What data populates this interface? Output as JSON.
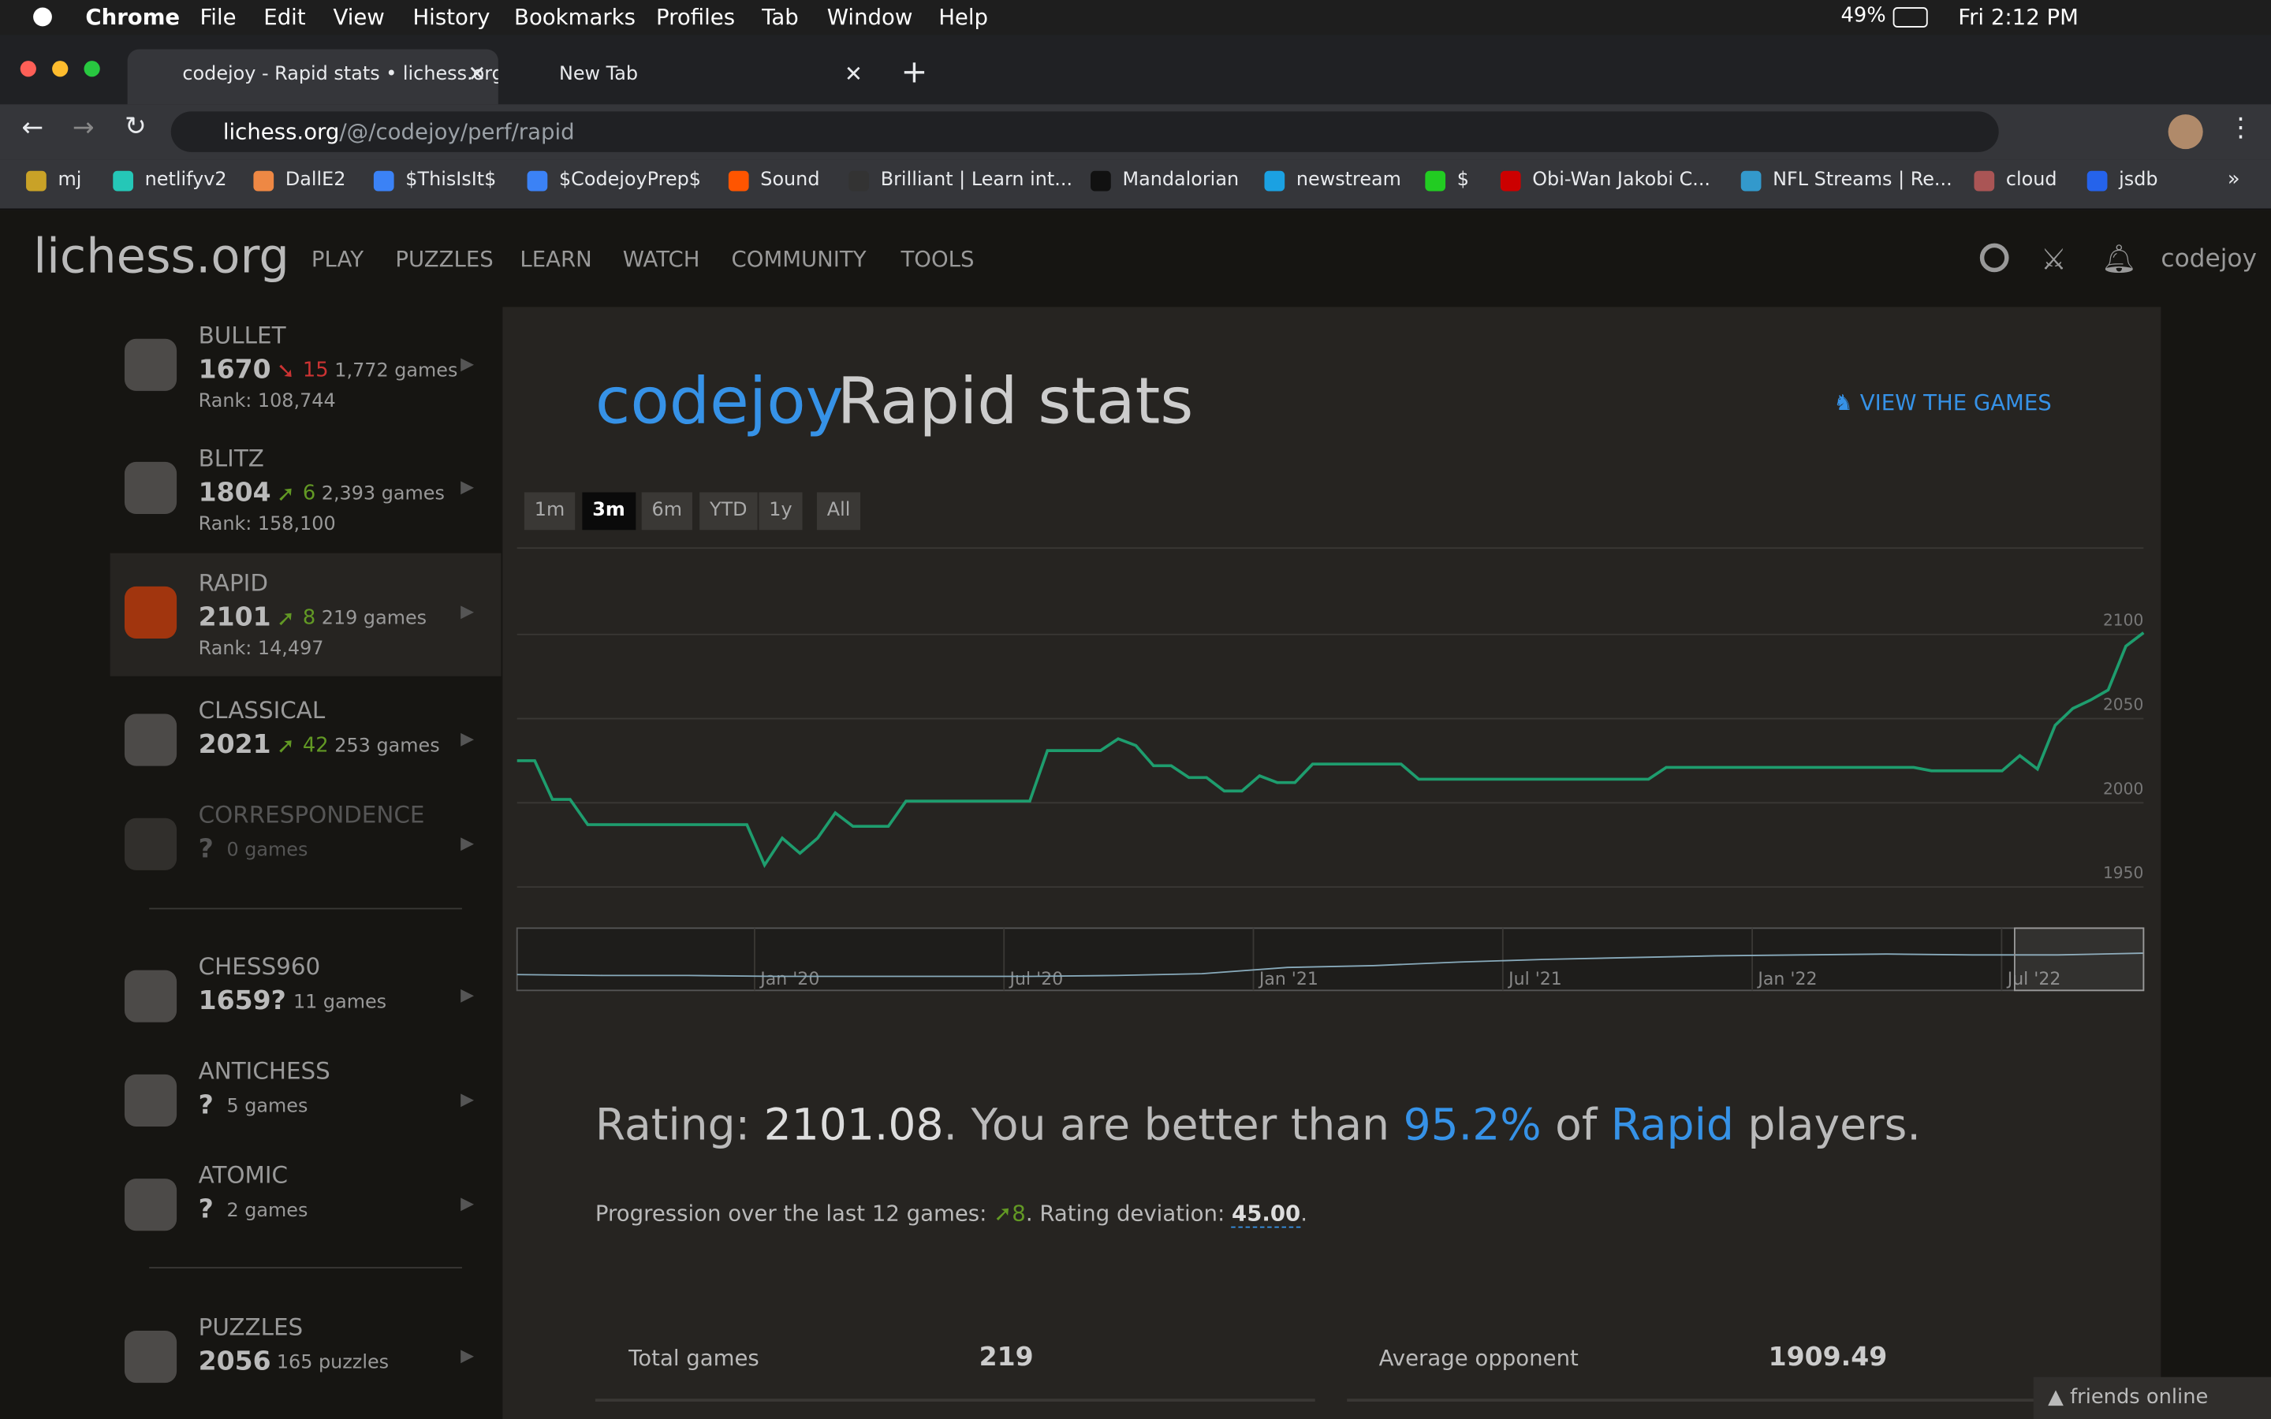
{
  "menubar": {
    "app": "Chrome",
    "menus": [
      "File",
      "Edit",
      "View",
      "History",
      "Bookmarks",
      "Profiles",
      "Tab",
      "Window",
      "Help"
    ],
    "battery": "49%",
    "clock": "Fri 2:12 PM"
  },
  "tabs": [
    "codejoy - Rapid stats • lichess.org",
    "New Tab"
  ],
  "url": {
    "host": "lichess.org",
    "path": "/@/codejoy/perf/rapid"
  },
  "bookmarks": [
    "mj",
    "netlifyv2",
    "DallE2",
    "$ThisIsIt$",
    "$CodejoyPrep$",
    "Sound",
    "Brilliant | Learn int...",
    "Mandalorian",
    "newstream",
    "$",
    "Obi-Wan Jakobi C...",
    "NFL Streams | Re...",
    "cloud",
    "jsdb"
  ],
  "site": {
    "logo": "lichess.org",
    "nav": [
      "PLAY",
      "PUZZLES",
      "LEARN",
      "WATCH",
      "COMMUNITY",
      "TOOLS"
    ],
    "user": "codejoy"
  },
  "perfs": [
    {
      "name": "BULLET",
      "rating": "1670",
      "delta": "15",
      "trend": "down",
      "games": "1,772 games",
      "rank": "Rank: 108,744"
    },
    {
      "name": "BLITZ",
      "rating": "1804",
      "delta": "6",
      "trend": "up",
      "games": "2,393 games",
      "rank": "Rank: 158,100"
    },
    {
      "name": "RAPID",
      "rating": "2101",
      "delta": "8",
      "trend": "up",
      "games": "219 games",
      "rank": "Rank: 14,497"
    },
    {
      "name": "CLASSICAL",
      "rating": "2021",
      "delta": "42",
      "trend": "up",
      "games": "253 games"
    },
    {
      "name": "CORRESPONDENCE",
      "rating": "?",
      "games": "0 games"
    },
    {
      "name": "CHESS960",
      "rating": "1659?",
      "games": "11 games"
    },
    {
      "name": "ANTICHESS",
      "rating": "?",
      "games": "5 games"
    },
    {
      "name": "ATOMIC",
      "rating": "?",
      "games": "2 games"
    },
    {
      "name": "PUZZLES",
      "rating": "2056",
      "games": "165 puzzles"
    }
  ],
  "main": {
    "user": "codejoy",
    "title": "Rapid stats",
    "view_games": "VIEW THE GAMES",
    "ranges": [
      "1m",
      "3m",
      "6m",
      "YTD",
      "1y",
      "All"
    ],
    "active_range": "3m",
    "rating_line": [
      "Rating: ",
      "2101.08",
      ". You are better than ",
      "95.2%",
      " of ",
      "Rapid",
      " players."
    ],
    "progression": [
      "Progression over the last 12 games: ",
      "8",
      ". Rating deviation: ",
      "45.00",
      "."
    ],
    "stats": [
      [
        "Total games",
        "219"
      ],
      [
        "Average opponent",
        "1909.49"
      ]
    ],
    "friends": "friends online"
  },
  "chart_data": {
    "type": "line",
    "ylim": [
      1935,
      2150
    ],
    "yticks": [
      1950,
      2000,
      2050,
      2100
    ],
    "grid": true,
    "color": "#1e9d6e",
    "values": [
      2025,
      2025,
      2002,
      2002,
      1987,
      1987,
      1987,
      1987,
      1987,
      1987,
      1987,
      1987,
      1987,
      1987,
      1963,
      1979,
      1970,
      1979,
      1994,
      1986,
      1986,
      1986,
      2001,
      2001,
      2001,
      2001,
      2001,
      2001,
      2001,
      2001,
      2031,
      2031,
      2031,
      2031,
      2038,
      2034,
      2022,
      2022,
      2015,
      2015,
      2007,
      2007,
      2016,
      2012,
      2012,
      2023,
      2023,
      2023,
      2023,
      2023,
      2023,
      2014,
      2014,
      2014,
      2014,
      2014,
      2014,
      2014,
      2014,
      2014,
      2014,
      2014,
      2014,
      2014,
      2014,
      2021,
      2021,
      2021,
      2021,
      2021,
      2021,
      2021,
      2021,
      2021,
      2021,
      2021,
      2021,
      2021,
      2021,
      2021,
      2019,
      2019,
      2019,
      2019,
      2019,
      2028,
      2020,
      2046,
      2056,
      2061,
      2067,
      2093,
      2101
    ],
    "navigator": {
      "categories": [
        "Jan '20",
        "Jul '20",
        "Jan '21",
        "Jul '21",
        "Jan '22",
        "Jul '22"
      ],
      "ylim": [
        1850,
        2150
      ],
      "values": [
        1890,
        1885,
        1885,
        1880,
        1880,
        1880,
        1880,
        1885,
        1895,
        1930,
        1940,
        1960,
        1975,
        1985,
        1995,
        2000,
        2005,
        2000,
        2000,
        2010
      ]
    }
  }
}
